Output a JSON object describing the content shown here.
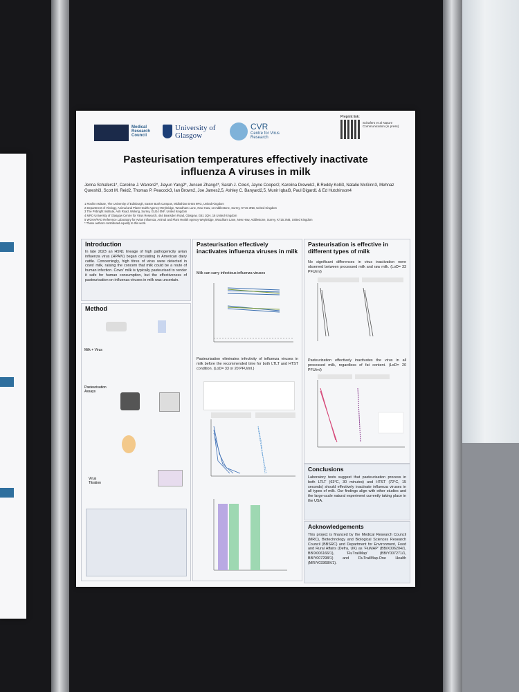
{
  "header": {
    "mrc": "Medical Research Council",
    "university": "University of Glasgow",
    "cvr": "CVR",
    "cvr_sub": "Centre for Virus Research",
    "preprint_label": "Preprint link:",
    "preprint_text": "Schafers et al Nature Communication (in press)"
  },
  "title": "Pasteurisation temperatures effectively inactivate influenza A viruses in milk",
  "authors": "Jenna Schafers1*, Caroline J. Warren2*, Jiayun Yang2*, Junsen Zhang4*, Sarah J. Cole4, Jayne Cooper2, Karolina Drewek2, B Reddy Kolli3, Natalie McGinn3, Mehnaz Qureshi3, Scott M. Reid2, Thomas P. Peacock3, Ian Brown2, Joe James2,5, Ashley C. Banyard2,5, Munir Iqbal3, Paul Digard1 & Ed Hutchinson4",
  "affiliations": [
    "1 Roslin Institute, The University of Edinburgh, Easter Bush Campus, Midlothian EH25 9RG, United Kingdom",
    "2 Department of Virology, Animal and Plant Health Agency-Weybridge, Woodham Lane, New Haw, 13 Addlestone, Surrey, KT15 3NB, United Kingdom",
    "3 The Pirbright Institute, Ash Road, Woking, Surrey, GU24 0NF, United Kingdom",
    "4 MRC-University of Glasgow Centre for Virus Research, 464 Bearsden Road, Glasgow, G61 1QH, 16 United Kingdom",
    "5 WOAH/FAO Reference Laboratory for Avian Influenza, Animal and Plant Health Agency-Weybridge, Woodham Lane, New Haw, Addlestone, Surrey, KT15 3NB, United Kingdom",
    "* These authors contributed equally to this work."
  ],
  "introduction": {
    "heading": "Introduction",
    "text": "In late 2023 an H5N1 lineage of high pathogenicity avian influenza virus (HPAIV) began circulating in American dairy cattle. Concerningly, high titres of virus were detected in cows' milk, raising the concern that milk could be a route of human infection. Cows' milk is typically pasteurised to render it safe for human consumption, but the effectiveness of pasteurisation on influenza viruses in milk was uncertain."
  },
  "method": {
    "heading": "Method",
    "steps": [
      "Milk + Virus",
      "Pasteurisation Assays",
      "Virus Titration"
    ]
  },
  "middle": {
    "heading": "Pasteurisation effectively inactivates influenza viruses in milk",
    "subtitle": "Milk can carry infectious influenza viruses",
    "caption": "Pasteurisation eliminates infectivity of influenza viruses in milk before the recommended time for both LTLT and HTST condition. (LoD= 33 or 20 PFU/ml.)"
  },
  "right": {
    "heading": "Pasteurisation is effective in different types of milk",
    "text": "No significant differences in virus inactivation were observed between processed milk and raw milk. (LoD= 33 PFU/ml)",
    "caption": "Pasteurization effectively inactivates the virus in all processed milk, regardless of fat content. (LoD= 20 PFU/ml)"
  },
  "conclusions": {
    "heading": "Conclusions",
    "text": "Laboratory tests suggest that pasteurisation process in both LTLT (63°C, 30 minutes) and HTST (72°C, 15 seconds) should effectively inactivate influenza viruses in all types of milk. Our findings align with other studies and the large-scale natural experiment currently taking place in the USA."
  },
  "acknowledgements": {
    "heading": "Acknowledgements",
    "text": "This project is financed by the Medical Research Council (MRC), Biotechnology and Biological Sciences Research Council (BBSRC) and Department for Environment, Food and Rural Affairs (Defra, UK) as 'FluMAP' (BB/X006204/1, BB/X006166/1), 'FluTrailMap' (BB/Y007271/1, BB/Y007298/1) and FluTrailMap-One Health (MR/Y03368X/1)."
  }
}
